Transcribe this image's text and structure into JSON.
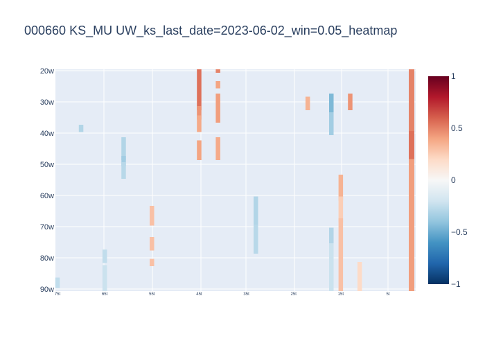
{
  "chart_data": {
    "type": "heatmap",
    "title": "000660 KS_MU UW_ks_last_date=2023-06-02_win=0.05_heatmap",
    "xlabel": "",
    "ylabel": "",
    "x_ticks": [
      "75t",
      "65t",
      "55t",
      "45t",
      "35t",
      "25t",
      "15t",
      "5t"
    ],
    "y_ticks": [
      "20w",
      "30w",
      "40w",
      "50w",
      "60w",
      "70w",
      "80w",
      "90w"
    ],
    "x_range": [
      75,
      0
    ],
    "y_range": [
      20,
      90
    ],
    "zlim": [
      -1,
      1
    ],
    "colorbar_ticks": [
      {
        "value": 1,
        "label": "1"
      },
      {
        "value": 0.5,
        "label": "0.5"
      },
      {
        "value": 0,
        "label": "0"
      },
      {
        "value": -0.5,
        "label": "−0.5"
      },
      {
        "value": -1,
        "label": "−1"
      }
    ],
    "colorscale": [
      "#053061",
      "#2166ac",
      "#4393c3",
      "#92c5de",
      "#d1e5f0",
      "#f7f7f7",
      "#fddbc7",
      "#f4a582",
      "#d6604d",
      "#b2182b",
      "#67001f"
    ],
    "grid": true,
    "cells": [
      {
        "t": 75,
        "w0": 87,
        "w1": 89,
        "z": -0.25
      },
      {
        "t": 70,
        "w0": 38,
        "w1": 39,
        "z": -0.3
      },
      {
        "t": 65,
        "w0": 78,
        "w1": 81,
        "z": -0.25
      },
      {
        "t": 65,
        "w0": 83,
        "w1": 90,
        "z": -0.22
      },
      {
        "t": 61,
        "w0": 42,
        "w1": 48,
        "z": -0.3
      },
      {
        "t": 61,
        "w0": 48,
        "w1": 50,
        "z": -0.35
      },
      {
        "t": 61,
        "w0": 50,
        "w1": 54,
        "z": -0.28
      },
      {
        "t": 55,
        "w0": 64,
        "w1": 69,
        "z": 0.3
      },
      {
        "t": 55,
        "w0": 74,
        "w1": 77,
        "z": 0.3
      },
      {
        "t": 55,
        "w0": 81,
        "w1": 82,
        "z": 0.3
      },
      {
        "t": 45,
        "w0": 20,
        "w1": 32,
        "z": 0.55
      },
      {
        "t": 45,
        "w0": 32,
        "w1": 35,
        "z": 0.45
      },
      {
        "t": 45,
        "w0": 35,
        "w1": 39,
        "z": 0.38
      },
      {
        "t": 45,
        "w0": 43,
        "w1": 48,
        "z": 0.4
      },
      {
        "t": 41,
        "w0": 19,
        "w1": 20,
        "z": 0.5
      },
      {
        "t": 41,
        "w0": 24,
        "w1": 25,
        "z": 0.4
      },
      {
        "t": 41,
        "w0": 28,
        "w1": 36,
        "z": 0.42
      },
      {
        "t": 41,
        "w0": 42,
        "w1": 48,
        "z": 0.38
      },
      {
        "t": 33,
        "w0": 61,
        "w1": 70,
        "z": -0.3
      },
      {
        "t": 33,
        "w0": 70,
        "w1": 78,
        "z": -0.28
      },
      {
        "t": 22,
        "w0": 29,
        "w1": 32,
        "z": 0.35
      },
      {
        "t": 17,
        "w0": 28,
        "w1": 34,
        "z": -0.45
      },
      {
        "t": 17,
        "w0": 34,
        "w1": 40,
        "z": -0.35
      },
      {
        "t": 17,
        "w0": 71,
        "w1": 75,
        "z": -0.3
      },
      {
        "t": 17,
        "w0": 76,
        "w1": 86,
        "z": -0.22
      },
      {
        "t": 17,
        "w0": 87,
        "w1": 90,
        "z": -0.22
      },
      {
        "t": 15,
        "w0": 54,
        "w1": 61,
        "z": 0.35
      },
      {
        "t": 15,
        "w0": 61,
        "w1": 68,
        "z": 0.25
      },
      {
        "t": 15,
        "w0": 68,
        "w1": 90,
        "z": 0.3
      },
      {
        "t": 13,
        "w0": 28,
        "w1": 32,
        "z": 0.45
      },
      {
        "t": 11,
        "w0": 82,
        "w1": 90,
        "z": 0.2
      },
      {
        "t": 0,
        "w0": 19,
        "w1": 40,
        "z": 0.5
      },
      {
        "t": 0,
        "w0": 40,
        "w1": 49,
        "z": 0.55
      },
      {
        "t": 0,
        "w0": 49,
        "w1": 90,
        "z": 0.42
      }
    ]
  }
}
